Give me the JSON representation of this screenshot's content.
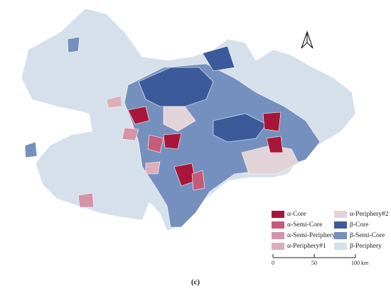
{
  "legend": {
    "items": [
      {
        "label": "α-Core",
        "color": "#a8173a"
      },
      {
        "label": "α-Semi-Core",
        "color": "#c65a79"
      },
      {
        "label": "α-Semi-Periphery",
        "color": "#d494a8"
      },
      {
        "label": "α-Periphery#1",
        "color": "#dcaeba"
      },
      {
        "label": "α-Periphery#2",
        "color": "#e2d3d8"
      },
      {
        "label": "β-Core",
        "color": "#3c5a9a"
      },
      {
        "label": "β-Semi-Core",
        "color": "#7590be"
      },
      {
        "label": "β-Periphery",
        "color": "#d6e0eb"
      }
    ]
  },
  "scale_bar": {
    "ticks": [
      0,
      50,
      100
    ],
    "unit": "km"
  },
  "caption": "(c)"
}
